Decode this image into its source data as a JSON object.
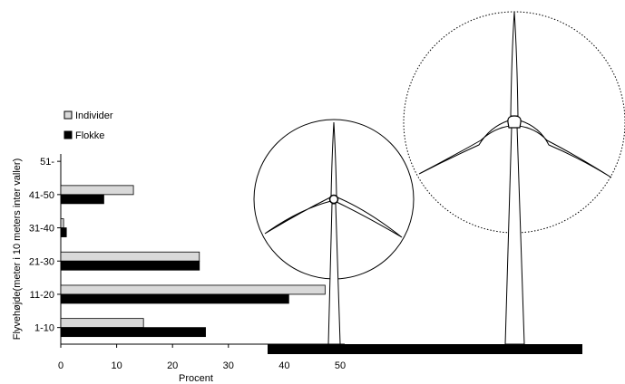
{
  "chart_data": {
    "type": "bar",
    "orientation": "horizontal",
    "categories": [
      "1-10",
      "11-20",
      "21-30",
      "31-40",
      "41-50",
      "51-"
    ],
    "series": [
      {
        "name": "Individer",
        "values": [
          14.8,
          47.3,
          24.8,
          0.5,
          13.0,
          0.0
        ],
        "color": "#d9d9d9"
      },
      {
        "name": "Flokke",
        "values": [
          25.9,
          40.8,
          24.8,
          1.0,
          7.7,
          0.0
        ],
        "color": "#000000"
      }
    ],
    "title": "",
    "xlabel": "Procent",
    "ylabel": "Flyvehøjde(meter i 10 meters inter valler)",
    "xlim": [
      0,
      50
    ],
    "xticks": [
      "0",
      "10",
      "20",
      "30",
      "40",
      "50"
    ],
    "grid": false,
    "legend_position": "top-left"
  },
  "colors": {
    "axis": "#000000",
    "turbine_outline": "#000000",
    "ground": "#000000"
  },
  "illustration": {
    "icon": "wind-turbine-icon"
  }
}
